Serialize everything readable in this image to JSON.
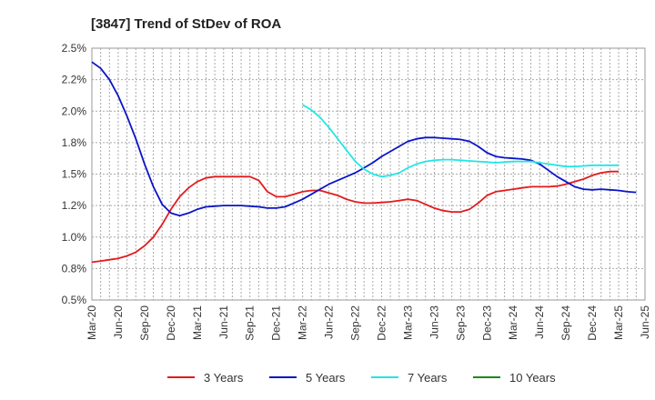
{
  "chart_data": {
    "type": "line",
    "title": "[3847]  Trend of StDev of ROA",
    "xlabel": "",
    "ylabel": "",
    "x_ticks": [
      "Mar-20",
      "Jun-20",
      "Sep-20",
      "Dec-20",
      "Mar-21",
      "Jun-21",
      "Sep-21",
      "Dec-21",
      "Mar-22",
      "Jun-22",
      "Sep-22",
      "Dec-22",
      "Mar-23",
      "Jun-23",
      "Sep-23",
      "Dec-23",
      "Mar-24",
      "Jun-24",
      "Sep-24",
      "Dec-24",
      "Mar-25",
      "Jun-25"
    ],
    "y_ticks": [
      "0.5%",
      "0.8%",
      "1.0%",
      "1.2%",
      "1.5%",
      "1.8%",
      "2.0%",
      "2.2%",
      "2.5%"
    ],
    "y_tick_values": [
      0.5,
      0.75,
      1.0,
      1.25,
      1.5,
      1.75,
      2.0,
      2.25,
      2.5
    ],
    "ylim": [
      0.5,
      2.5
    ],
    "grid": true,
    "legend_position": "bottom",
    "series": [
      {
        "name": "3 Years",
        "color": "#e41a1c",
        "points": [
          [
            "Mar-20",
            0.8
          ],
          [
            "Apr-20",
            0.81
          ],
          [
            "May-20",
            0.82
          ],
          [
            "Jun-20",
            0.83
          ],
          [
            "Jul-20",
            0.85
          ],
          [
            "Aug-20",
            0.88
          ],
          [
            "Sep-20",
            0.93
          ],
          [
            "Oct-20",
            1.0
          ],
          [
            "Nov-20",
            1.1
          ],
          [
            "Dec-20",
            1.22
          ],
          [
            "Jan-21",
            1.32
          ],
          [
            "Feb-21",
            1.39
          ],
          [
            "Mar-21",
            1.44
          ],
          [
            "Apr-21",
            1.47
          ],
          [
            "May-21",
            1.48
          ],
          [
            "Jun-21",
            1.48
          ],
          [
            "Jul-21",
            1.48
          ],
          [
            "Aug-21",
            1.48
          ],
          [
            "Sep-21",
            1.48
          ],
          [
            "Oct-21",
            1.45
          ],
          [
            "Nov-21",
            1.36
          ],
          [
            "Dec-21",
            1.32
          ],
          [
            "Jan-22",
            1.32
          ],
          [
            "Feb-22",
            1.34
          ],
          [
            "Mar-22",
            1.36
          ],
          [
            "Apr-22",
            1.37
          ],
          [
            "May-22",
            1.37
          ],
          [
            "Jun-22",
            1.35
          ],
          [
            "Jul-22",
            1.33
          ],
          [
            "Aug-22",
            1.3
          ],
          [
            "Sep-22",
            1.28
          ],
          [
            "Oct-22",
            1.27
          ],
          [
            "Nov-22",
            1.27
          ],
          [
            "Dec-22",
            1.275
          ],
          [
            "Jan-23",
            1.28
          ],
          [
            "Feb-23",
            1.29
          ],
          [
            "Mar-23",
            1.3
          ],
          [
            "Apr-23",
            1.29
          ],
          [
            "May-23",
            1.26
          ],
          [
            "Jun-23",
            1.23
          ],
          [
            "Jul-23",
            1.21
          ],
          [
            "Aug-23",
            1.2
          ],
          [
            "Sep-23",
            1.2
          ],
          [
            "Oct-23",
            1.22
          ],
          [
            "Nov-23",
            1.27
          ],
          [
            "Dec-23",
            1.33
          ],
          [
            "Jan-24",
            1.36
          ],
          [
            "Feb-24",
            1.37
          ],
          [
            "Mar-24",
            1.38
          ],
          [
            "Apr-24",
            1.39
          ],
          [
            "May-24",
            1.4
          ],
          [
            "Jun-24",
            1.4
          ],
          [
            "Jul-24",
            1.4
          ],
          [
            "Aug-24",
            1.405
          ],
          [
            "Sep-24",
            1.42
          ],
          [
            "Oct-24",
            1.44
          ],
          [
            "Nov-24",
            1.46
          ],
          [
            "Dec-24",
            1.49
          ],
          [
            "Jan-25",
            1.51
          ],
          [
            "Feb-25",
            1.52
          ],
          [
            "Mar-25",
            1.52
          ]
        ]
      },
      {
        "name": "5 Years",
        "color": "#0a14c8",
        "points": [
          [
            "Mar-20",
            2.39
          ],
          [
            "Apr-20",
            2.34
          ],
          [
            "May-20",
            2.25
          ],
          [
            "Jun-20",
            2.12
          ],
          [
            "Jul-20",
            1.96
          ],
          [
            "Aug-20",
            1.78
          ],
          [
            "Sep-20",
            1.58
          ],
          [
            "Oct-20",
            1.4
          ],
          [
            "Nov-20",
            1.26
          ],
          [
            "Dec-20",
            1.19
          ],
          [
            "Jan-21",
            1.17
          ],
          [
            "Feb-21",
            1.19
          ],
          [
            "Mar-21",
            1.22
          ],
          [
            "Apr-21",
            1.24
          ],
          [
            "May-21",
            1.245
          ],
          [
            "Jun-21",
            1.25
          ],
          [
            "Jul-21",
            1.25
          ],
          [
            "Aug-21",
            1.25
          ],
          [
            "Sep-21",
            1.245
          ],
          [
            "Oct-21",
            1.24
          ],
          [
            "Nov-21",
            1.23
          ],
          [
            "Dec-21",
            1.23
          ],
          [
            "Jan-22",
            1.24
          ],
          [
            "Feb-22",
            1.27
          ],
          [
            "Mar-22",
            1.3
          ],
          [
            "Apr-22",
            1.34
          ],
          [
            "May-22",
            1.38
          ],
          [
            "Jun-22",
            1.42
          ],
          [
            "Jul-22",
            1.45
          ],
          [
            "Aug-22",
            1.48
          ],
          [
            "Sep-22",
            1.51
          ],
          [
            "Oct-22",
            1.55
          ],
          [
            "Nov-22",
            1.59
          ],
          [
            "Dec-22",
            1.64
          ],
          [
            "Jan-23",
            1.68
          ],
          [
            "Feb-23",
            1.72
          ],
          [
            "Mar-23",
            1.76
          ],
          [
            "Apr-23",
            1.78
          ],
          [
            "May-23",
            1.79
          ],
          [
            "Jun-23",
            1.79
          ],
          [
            "Jul-23",
            1.785
          ],
          [
            "Aug-23",
            1.78
          ],
          [
            "Sep-23",
            1.775
          ],
          [
            "Oct-23",
            1.76
          ],
          [
            "Nov-23",
            1.72
          ],
          [
            "Dec-23",
            1.67
          ],
          [
            "Jan-24",
            1.64
          ],
          [
            "Feb-24",
            1.63
          ],
          [
            "Mar-24",
            1.625
          ],
          [
            "Apr-24",
            1.62
          ],
          [
            "May-24",
            1.61
          ],
          [
            "Jun-24",
            1.58
          ],
          [
            "Jul-24",
            1.53
          ],
          [
            "Aug-24",
            1.48
          ],
          [
            "Sep-24",
            1.44
          ],
          [
            "Oct-24",
            1.4
          ],
          [
            "Nov-24",
            1.38
          ],
          [
            "Dec-24",
            1.375
          ],
          [
            "Jan-25",
            1.38
          ],
          [
            "Feb-25",
            1.375
          ],
          [
            "Mar-25",
            1.37
          ],
          [
            "Apr-25",
            1.36
          ],
          [
            "May-25",
            1.355
          ]
        ]
      },
      {
        "name": "7 Years",
        "color": "#22e6e6",
        "points": [
          [
            "Mar-22",
            2.05
          ],
          [
            "Apr-22",
            2.01
          ],
          [
            "May-22",
            1.95
          ],
          [
            "Jun-22",
            1.87
          ],
          [
            "Jul-22",
            1.78
          ],
          [
            "Aug-22",
            1.69
          ],
          [
            "Sep-22",
            1.6
          ],
          [
            "Oct-22",
            1.54
          ],
          [
            "Nov-22",
            1.5
          ],
          [
            "Dec-22",
            1.48
          ],
          [
            "Jan-23",
            1.49
          ],
          [
            "Feb-23",
            1.51
          ],
          [
            "Mar-23",
            1.55
          ],
          [
            "Apr-23",
            1.58
          ],
          [
            "May-23",
            1.6
          ],
          [
            "Jun-23",
            1.61
          ],
          [
            "Jul-23",
            1.615
          ],
          [
            "Aug-23",
            1.615
          ],
          [
            "Sep-23",
            1.61
          ],
          [
            "Oct-23",
            1.605
          ],
          [
            "Nov-23",
            1.6
          ],
          [
            "Dec-23",
            1.595
          ],
          [
            "Jan-24",
            1.59
          ],
          [
            "Feb-24",
            1.595
          ],
          [
            "Mar-24",
            1.6
          ],
          [
            "Apr-24",
            1.6
          ],
          [
            "May-24",
            1.6
          ],
          [
            "Jun-24",
            1.59
          ],
          [
            "Jul-24",
            1.58
          ],
          [
            "Aug-24",
            1.57
          ],
          [
            "Sep-24",
            1.56
          ],
          [
            "Oct-24",
            1.56
          ],
          [
            "Nov-24",
            1.565
          ],
          [
            "Dec-24",
            1.57
          ],
          [
            "Jan-25",
            1.57
          ],
          [
            "Feb-25",
            1.57
          ],
          [
            "Mar-25",
            1.57
          ]
        ]
      },
      {
        "name": "10 Years",
        "color": "#1a8a1a",
        "points": []
      }
    ]
  }
}
